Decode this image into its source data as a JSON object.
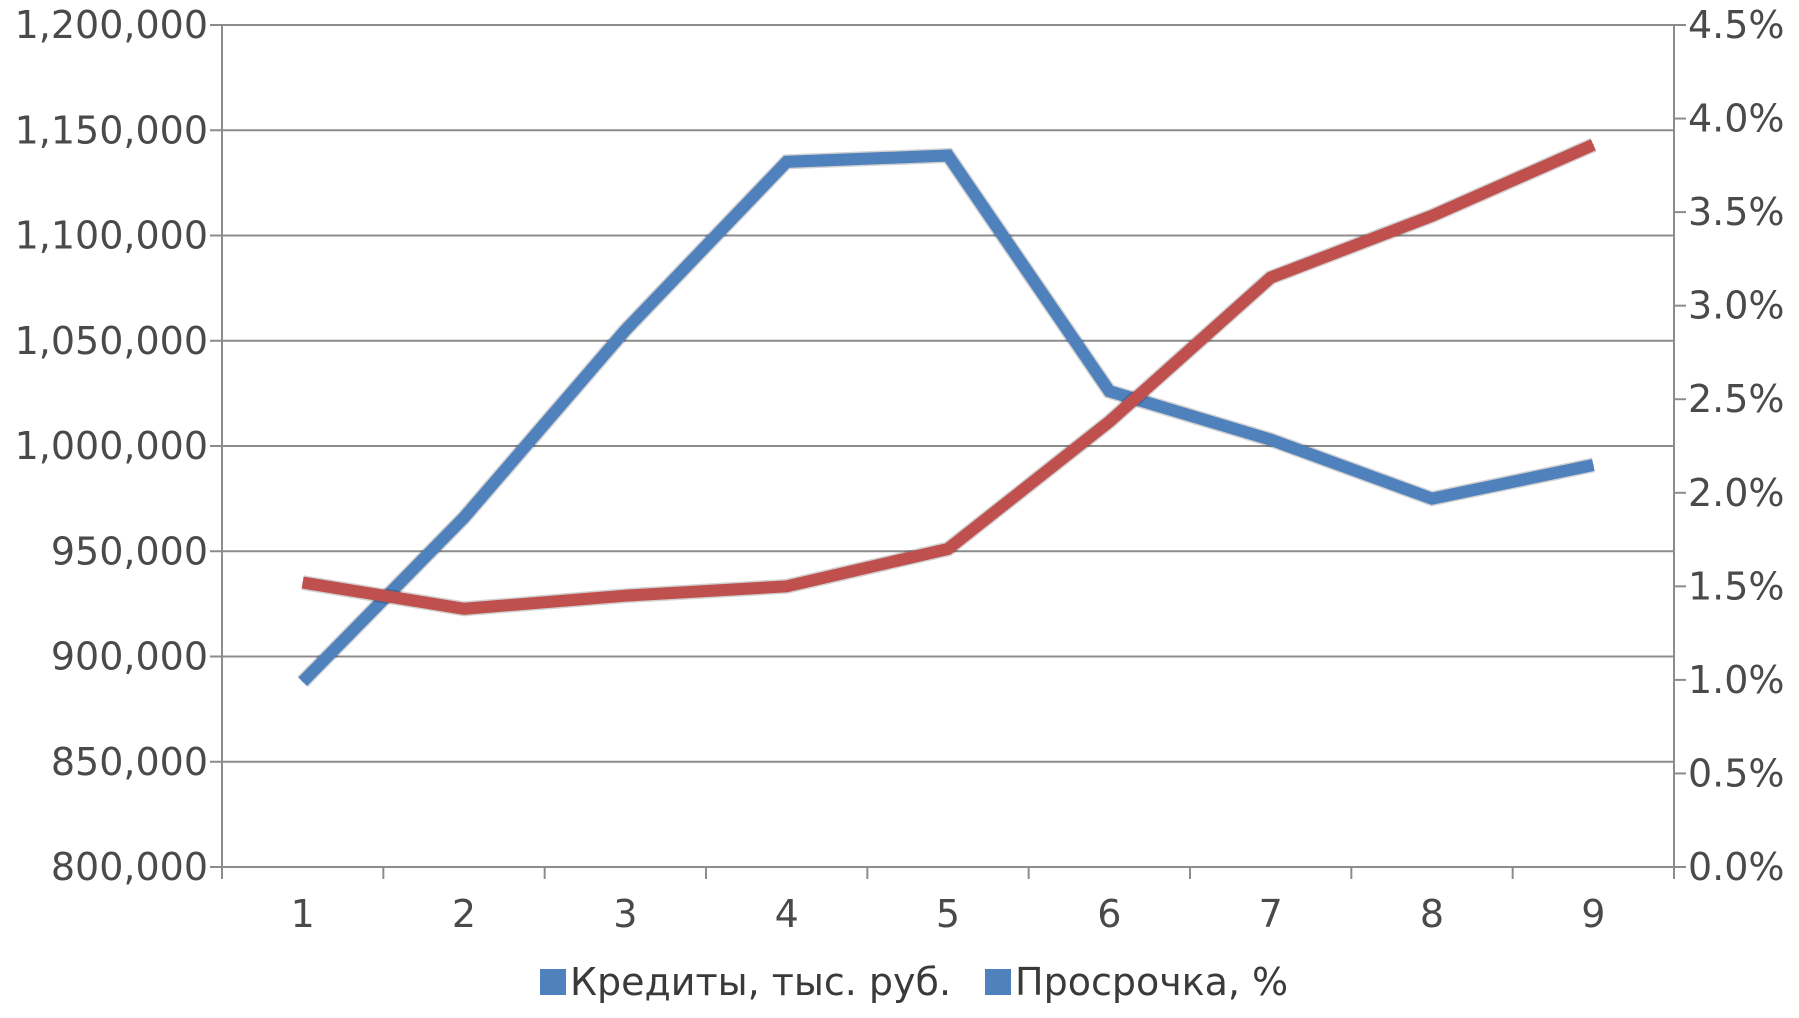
{
  "chart_data": {
    "type": "line",
    "categories": [
      "1",
      "2",
      "3",
      "4",
      "5",
      "6",
      "7",
      "8",
      "9"
    ],
    "series": [
      {
        "name": "Кредиты, тыс. руб.",
        "axis": "left",
        "color": "#4f81bd",
        "values": [
          888000,
          966000,
          1055000,
          1135000,
          1138000,
          1026000,
          1003000,
          975000,
          991000
        ]
      },
      {
        "name": "Просрочка, %",
        "axis": "right",
        "color": "#c0504d",
        "values": [
          1.52,
          1.38,
          1.45,
          1.5,
          1.7,
          2.38,
          3.15,
          3.48,
          3.86
        ]
      }
    ],
    "y_left": {
      "min": 800000,
      "max": 1200000,
      "step": 50000,
      "tick_labels": [
        "800,000",
        "850,000",
        "900,000",
        "950,000",
        "1,000,000",
        "1,050,000",
        "1,100,000",
        "1,150,000",
        "1,200,000"
      ]
    },
    "y_right": {
      "min": 0,
      "max": 4.5,
      "step": 0.5,
      "tick_labels": [
        "0.0%",
        "0.5%",
        "1.0%",
        "1.5%",
        "2.0%",
        "2.5%",
        "3.0%",
        "3.5%",
        "4.0%",
        "4.5%"
      ]
    },
    "legend": {
      "placement": "bottom",
      "entries": [
        {
          "label": "Кредиты, тыс. руб.",
          "color": "#4f81bd"
        },
        {
          "label": "Просрочка, %",
          "color": "#4f81bd"
        }
      ]
    },
    "grid": true
  }
}
